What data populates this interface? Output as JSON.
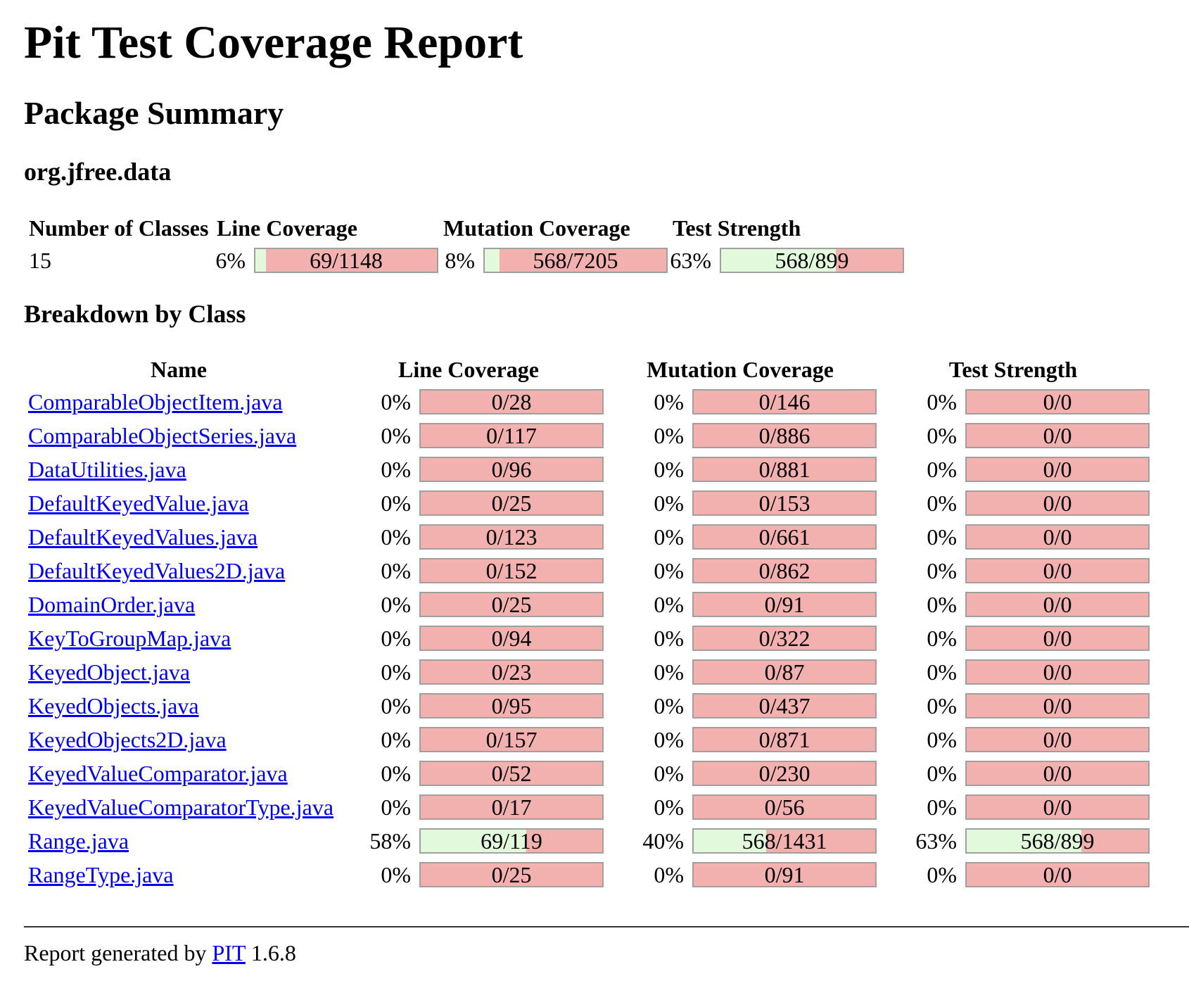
{
  "title": "Pit Test Coverage Report",
  "subtitle": "Package Summary",
  "package_name": "org.jfree.data",
  "summary": {
    "headers": [
      "Number of Classes",
      "Line Coverage",
      "Mutation Coverage",
      "Test Strength"
    ],
    "classes": "15",
    "line": {
      "pct": "6%",
      "text": "69/1148",
      "fraction": 0.06
    },
    "mutation": {
      "pct": "8%",
      "text": "568/7205",
      "fraction": 0.08
    },
    "strength": {
      "pct": "63%",
      "text": "568/899",
      "fraction": 0.63
    }
  },
  "breakdown_title": "Breakdown by Class",
  "breakdown_headers": [
    "Name",
    "Line Coverage",
    "Mutation Coverage",
    "Test Strength"
  ],
  "rows": [
    {
      "name": "ComparableObjectItem.java",
      "line_pct": "0%",
      "line": "0/28",
      "line_f": 0,
      "mut_pct": "0%",
      "mut": "0/146",
      "mut_f": 0,
      "str_pct": "0%",
      "str": "0/0",
      "str_f": 0
    },
    {
      "name": "ComparableObjectSeries.java",
      "line_pct": "0%",
      "line": "0/117",
      "line_f": 0,
      "mut_pct": "0%",
      "mut": "0/886",
      "mut_f": 0,
      "str_pct": "0%",
      "str": "0/0",
      "str_f": 0
    },
    {
      "name": "DataUtilities.java",
      "line_pct": "0%",
      "line": "0/96",
      "line_f": 0,
      "mut_pct": "0%",
      "mut": "0/881",
      "mut_f": 0,
      "str_pct": "0%",
      "str": "0/0",
      "str_f": 0
    },
    {
      "name": "DefaultKeyedValue.java",
      "line_pct": "0%",
      "line": "0/25",
      "line_f": 0,
      "mut_pct": "0%",
      "mut": "0/153",
      "mut_f": 0,
      "str_pct": "0%",
      "str": "0/0",
      "str_f": 0
    },
    {
      "name": "DefaultKeyedValues.java",
      "line_pct": "0%",
      "line": "0/123",
      "line_f": 0,
      "mut_pct": "0%",
      "mut": "0/661",
      "mut_f": 0,
      "str_pct": "0%",
      "str": "0/0",
      "str_f": 0
    },
    {
      "name": "DefaultKeyedValues2D.java",
      "line_pct": "0%",
      "line": "0/152",
      "line_f": 0,
      "mut_pct": "0%",
      "mut": "0/862",
      "mut_f": 0,
      "str_pct": "0%",
      "str": "0/0",
      "str_f": 0
    },
    {
      "name": "DomainOrder.java",
      "line_pct": "0%",
      "line": "0/25",
      "line_f": 0,
      "mut_pct": "0%",
      "mut": "0/91",
      "mut_f": 0,
      "str_pct": "0%",
      "str": "0/0",
      "str_f": 0
    },
    {
      "name": "KeyToGroupMap.java",
      "line_pct": "0%",
      "line": "0/94",
      "line_f": 0,
      "mut_pct": "0%",
      "mut": "0/322",
      "mut_f": 0,
      "str_pct": "0%",
      "str": "0/0",
      "str_f": 0
    },
    {
      "name": "KeyedObject.java",
      "line_pct": "0%",
      "line": "0/23",
      "line_f": 0,
      "mut_pct": "0%",
      "mut": "0/87",
      "mut_f": 0,
      "str_pct": "0%",
      "str": "0/0",
      "str_f": 0
    },
    {
      "name": "KeyedObjects.java",
      "line_pct": "0%",
      "line": "0/95",
      "line_f": 0,
      "mut_pct": "0%",
      "mut": "0/437",
      "mut_f": 0,
      "str_pct": "0%",
      "str": "0/0",
      "str_f": 0
    },
    {
      "name": "KeyedObjects2D.java",
      "line_pct": "0%",
      "line": "0/157",
      "line_f": 0,
      "mut_pct": "0%",
      "mut": "0/871",
      "mut_f": 0,
      "str_pct": "0%",
      "str": "0/0",
      "str_f": 0
    },
    {
      "name": "KeyedValueComparator.java",
      "line_pct": "0%",
      "line": "0/52",
      "line_f": 0,
      "mut_pct": "0%",
      "mut": "0/230",
      "mut_f": 0,
      "str_pct": "0%",
      "str": "0/0",
      "str_f": 0
    },
    {
      "name": "KeyedValueComparatorType.java",
      "line_pct": "0%",
      "line": "0/17",
      "line_f": 0,
      "mut_pct": "0%",
      "mut": "0/56",
      "mut_f": 0,
      "str_pct": "0%",
      "str": "0/0",
      "str_f": 0
    },
    {
      "name": "Range.java",
      "line_pct": "58%",
      "line": "69/119",
      "line_f": 0.58,
      "mut_pct": "40%",
      "mut": "568/1431",
      "mut_f": 0.4,
      "str_pct": "63%",
      "str": "568/899",
      "str_f": 0.63
    },
    {
      "name": "RangeType.java",
      "line_pct": "0%",
      "line": "0/25",
      "line_f": 0,
      "mut_pct": "0%",
      "mut": "0/91",
      "mut_f": 0,
      "str_pct": "0%",
      "str": "0/0",
      "str_f": 0
    }
  ],
  "footer": {
    "prefix": "Report generated by ",
    "link": "PIT",
    "version": " 1.6.8"
  },
  "colors": {
    "covered": "#e2fadb",
    "uncovered": "#f2b0ae",
    "link": "#0000ee"
  }
}
